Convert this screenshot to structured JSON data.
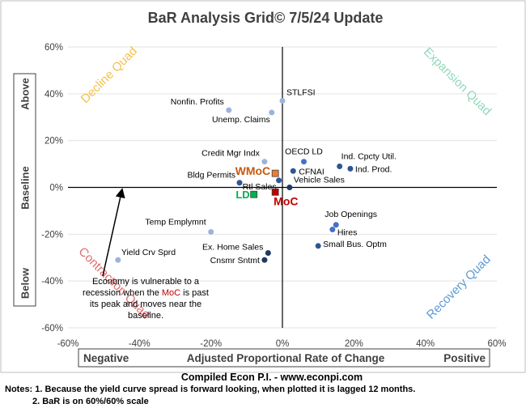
{
  "chart_data": {
    "type": "scatter",
    "title": "BaR Analysis Grid© 7/5/24 Update",
    "xlim": [
      -60,
      60
    ],
    "ylim": [
      -60,
      60
    ],
    "x_ticks": [
      "-60%",
      "-40%",
      "-20%",
      "0%",
      "20%",
      "40%",
      "60%"
    ],
    "y_ticks": [
      "-60%",
      "-40%",
      "-20%",
      "0%",
      "20%",
      "40%",
      "60%"
    ],
    "xlabel": {
      "left": "Negative",
      "center": "Adjusted Proportional Rate of Change",
      "right": "Positive"
    },
    "ylabel": {
      "top": "Above",
      "middle": "Baseline",
      "bottom": "Below"
    },
    "quadrants": [
      {
        "label": "Decline Quad",
        "color": "#f2c14e"
      },
      {
        "label": "Expansion Quad",
        "color": "#8fd8b8"
      },
      {
        "label": "Contraction Quad",
        "color": "#e06b6b"
      },
      {
        "label": "Recovery Quad",
        "color": "#5b9bd5"
      }
    ],
    "points": [
      {
        "name": "STLFSI",
        "x": 0,
        "y": 37,
        "color": "#9db3dd"
      },
      {
        "name": "Nonfin. Profits",
        "x": -15,
        "y": 33,
        "color": "#9db3dd"
      },
      {
        "name": "Unemp. Claims",
        "x": -3,
        "y": 32,
        "color": "#9db3dd"
      },
      {
        "name": "Credit Mgr Indx",
        "x": -5,
        "y": 11,
        "color": "#9db3dd"
      },
      {
        "name": "OECD LD",
        "x": 6,
        "y": 11,
        "color": "#4472c4"
      },
      {
        "name": "Ind. Cpcty Util.",
        "x": 16,
        "y": 9,
        "color": "#2f5597"
      },
      {
        "name": "Ind. Prod.",
        "x": 19,
        "y": 8,
        "color": "#2f5597"
      },
      {
        "name": "CFNAI",
        "x": 3,
        "y": 7,
        "color": "#2f5597"
      },
      {
        "name": "Bldg Permits",
        "x": -12,
        "y": 2,
        "color": "#2f5597"
      },
      {
        "name": "Rtl Sales",
        "x": -1,
        "y": 3,
        "color": "#2f5597"
      },
      {
        "name": "Vehicle Sales",
        "x": 2,
        "y": 0,
        "color": "#203864"
      },
      {
        "name": "Temp Emplymnt",
        "x": -20,
        "y": -19,
        "color": "#9db3dd"
      },
      {
        "name": "Job Openings",
        "x": 15,
        "y": -16,
        "color": "#4472c4"
      },
      {
        "name": "Hires",
        "x": 14,
        "y": -18,
        "color": "#4472c4"
      },
      {
        "name": "Small Bus. Optm",
        "x": 10,
        "y": -25,
        "color": "#2f5597"
      },
      {
        "name": "Yield Crv Sprd",
        "x": -46,
        "y": -31,
        "color": "#9db3dd"
      },
      {
        "name": "Ex. Home Sales",
        "x": -4,
        "y": -28,
        "color": "#203864"
      },
      {
        "name": "Cnsmr Sntmt",
        "x": -5,
        "y": -31,
        "color": "#203864"
      }
    ],
    "highlight_points": [
      {
        "name": "WMoC",
        "x": -2,
        "y": 6,
        "color": "#c55a11",
        "fill": "#ed7d31"
      },
      {
        "name": "LD",
        "x": -8,
        "y": -3,
        "color": "#00b050",
        "fill": "#00b050"
      },
      {
        "name": "MoC",
        "x": -2,
        "y": -2,
        "color": "#c00000",
        "fill": "#c00000"
      }
    ],
    "annotation": {
      "lines": [
        "Economy is vulnerable to a",
        "recession when the MoC is past",
        "its peak and moves near the",
        "baseline."
      ],
      "highlight_word": "MoC",
      "highlight_color": "#c00000"
    }
  },
  "footer": {
    "credit": "Compiled Econ P.I. - www.econpi.com",
    "note1": "Notes: 1. Because the yield curve spread is forward looking, when plotted it is lagged 12 months.",
    "note2": "2. BaR is on 60%/60% scale"
  }
}
